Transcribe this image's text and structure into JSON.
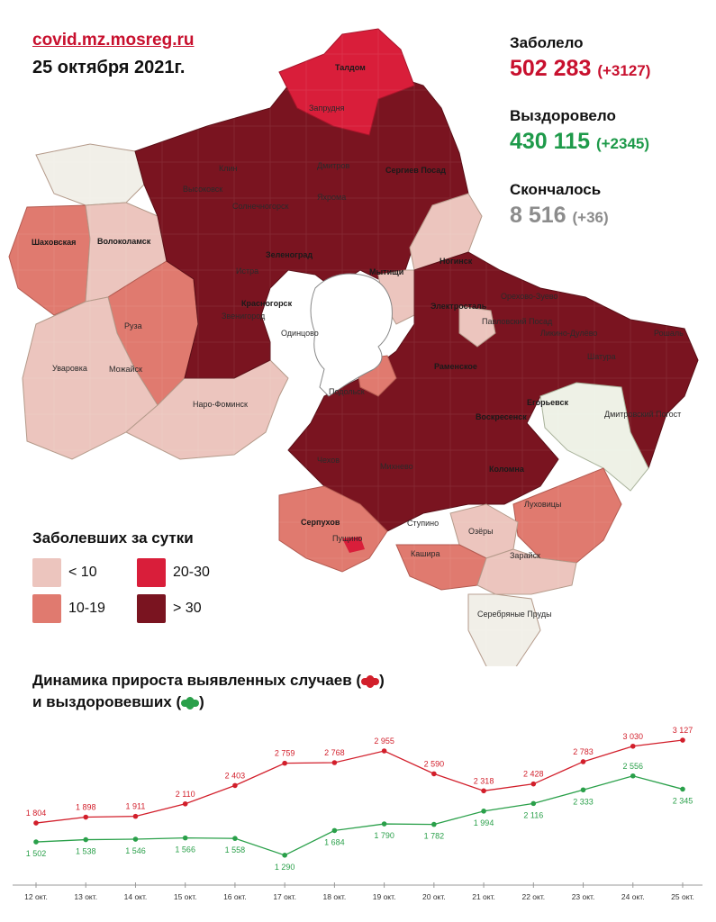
{
  "header": {
    "source": "covid.mz.mosreg.ru",
    "date": "25 октября 2021г."
  },
  "stats": {
    "sick": {
      "label": "Заболело",
      "value": "502 283",
      "delta": "(+3127)",
      "color": "#c8102e"
    },
    "recovered": {
      "label": "Выздоровело",
      "value": "430 115",
      "delta": "(+2345)",
      "color": "#1e9a4a"
    },
    "died": {
      "label": "Скончалось",
      "value": "8 516",
      "delta": "(+36)",
      "color": "#8c8c8c"
    }
  },
  "legend": {
    "title": "Заболевших за сутки",
    "items": [
      {
        "label": "< 10",
        "color": "#ecc5be"
      },
      {
        "label": "20-30",
        "color": "#d91e3a"
      },
      {
        "label": "10-19",
        "color": "#e07a6f"
      },
      {
        "label": "> 30",
        "color": "#7a1420"
      }
    ]
  },
  "map_labels": [
    "Талдом",
    "Запрудня",
    "Клин",
    "Высоковск",
    "Дмитров",
    "Сергиев Посад",
    "Солнечногорск",
    "Яхрома",
    "Шаховская",
    "Волоколамск",
    "Зеленоград",
    "Мытищи",
    "Истра",
    "Ногинск",
    "Красногорск",
    "Электросталь",
    "Орехово-Зуево",
    "Павловский Посад",
    "Руза",
    "Звенигород",
    "Одинцово",
    "Ликино-Дулёво",
    "Рошаль",
    "Уваровка",
    "Можайск",
    "Шатура",
    "Раменское",
    "Наро-Фоминск",
    "Подольск",
    "Егорьевск",
    "Воскресенск",
    "Дмитровский Погост",
    "Чехов",
    "Михнево",
    "Коломна",
    "Серпухов",
    "Луховицы",
    "Пущино",
    "Ступино",
    "Озёры",
    "Кашира",
    "Зарайск",
    "Серебряные Пруды"
  ],
  "chart_data": {
    "type": "line",
    "title": "Динамика прироста выявленных случаев ( ) и выздоровевших ( )",
    "title_line1": "Динамика прироста выявленных случаев (",
    "title_line2": "и выздоровевших (",
    "categories": [
      "12 окт.",
      "13 окт.",
      "14 окт.",
      "15 окт.",
      "16 окт.",
      "17 окт.",
      "18 окт.",
      "19 окт.",
      "20 окт.",
      "21 окт.",
      "22 окт.",
      "23 окт.",
      "24 окт.",
      "25 окт."
    ],
    "series": [
      {
        "color": "#d21f2b",
        "values": [
          1804,
          1898,
          1911,
          2110,
          2403,
          2759,
          2768,
          2955,
          2590,
          2318,
          2428,
          2783,
          3030,
          3127
        ],
        "labels": [
          "1 804",
          "1 898",
          "1 911",
          "2 110",
          "2 403",
          "2 759",
          "2 768",
          "2 955",
          "2 590",
          "2 318",
          "2 428",
          "2 783",
          "3 030",
          "3 127"
        ]
      },
      {
        "color": "#2aa04a",
        "values": [
          1502,
          1538,
          1546,
          1566,
          1558,
          1290,
          1684,
          1790,
          1782,
          1994,
          2116,
          2333,
          2556,
          2345
        ],
        "labels": [
          "1 502",
          "1 538",
          "1 546",
          "1 566",
          "1 558",
          "1 290",
          "1 684",
          "1 790",
          "1 782",
          "1 994",
          "2 116",
          "2 333",
          "2 556",
          "2 345"
        ]
      }
    ],
    "ylim": [
      1000,
      3300
    ]
  }
}
